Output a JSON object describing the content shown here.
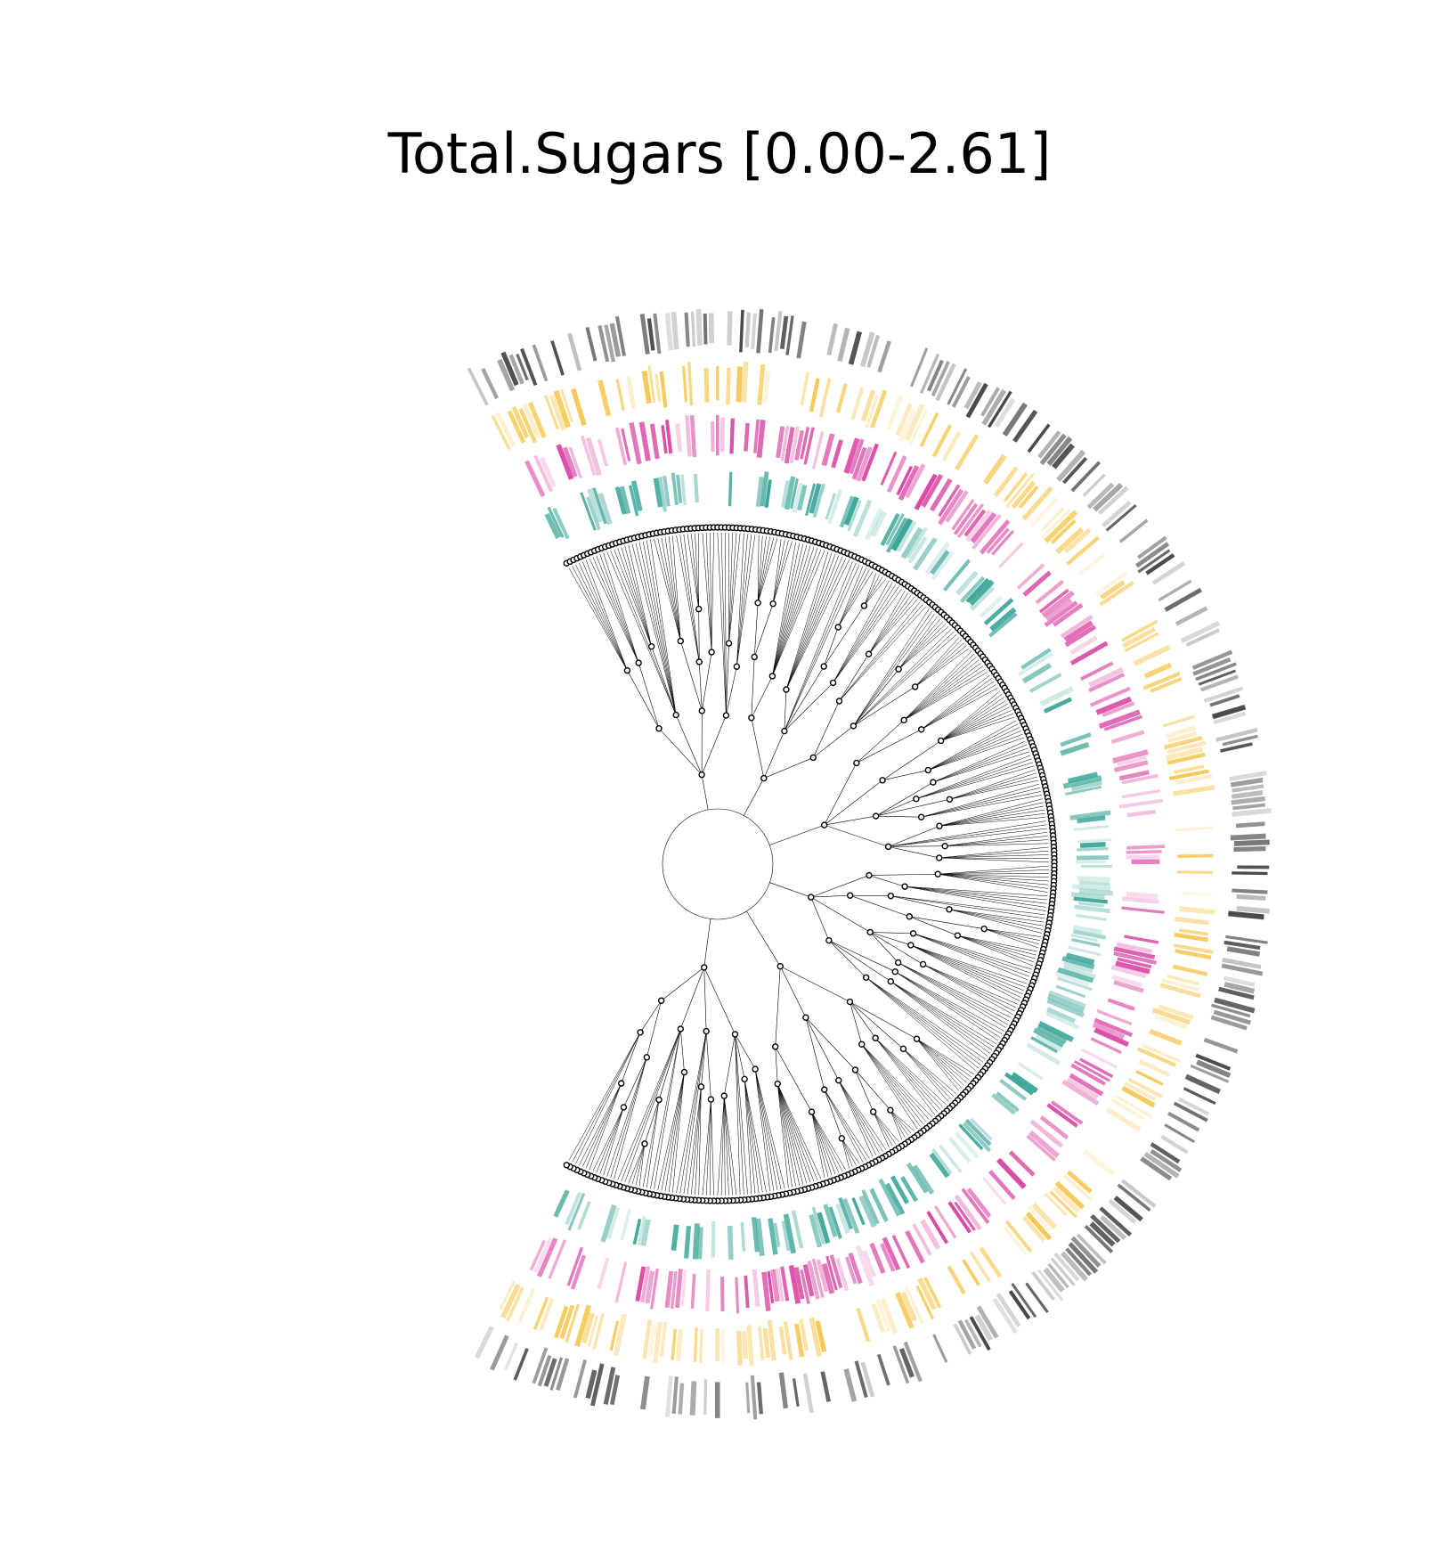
{
  "title": "Total.Sugars [0.00-2.61]",
  "diagram": {
    "type": "circular-tree-with-rings",
    "leaf_count": 360,
    "rings": [
      {
        "key": "ring-teal",
        "color": "#2a9d8f"
      },
      {
        "key": "ring-magenta",
        "color": "#d6369b"
      },
      {
        "key": "ring-yellow",
        "color": "#f5c242"
      },
      {
        "key": "ring-gray",
        "color": "#333333"
      }
    ],
    "edge_color": "#000000",
    "node_fill": "#ffffff",
    "node_stroke": "#000000"
  }
}
